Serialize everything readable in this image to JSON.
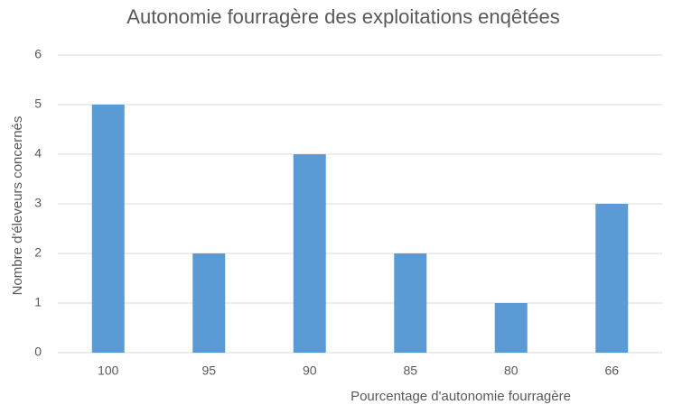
{
  "chart_data": {
    "type": "bar",
    "title": "Autonomie fourragère des exploitations enqêtées",
    "x_label": "Pourcentage d'autonomie fourragère",
    "y_label": "Nombre d'éleveurs concernés",
    "categories": [
      "100",
      "95",
      "90",
      "85",
      "80",
      "66"
    ],
    "values": [
      5,
      2,
      4,
      2,
      1,
      3
    ],
    "color": "#5b9bd5",
    "ylim": [
      0,
      6
    ],
    "yticks": [
      0,
      1,
      2,
      3,
      4,
      5,
      6
    ],
    "grid": true
  }
}
